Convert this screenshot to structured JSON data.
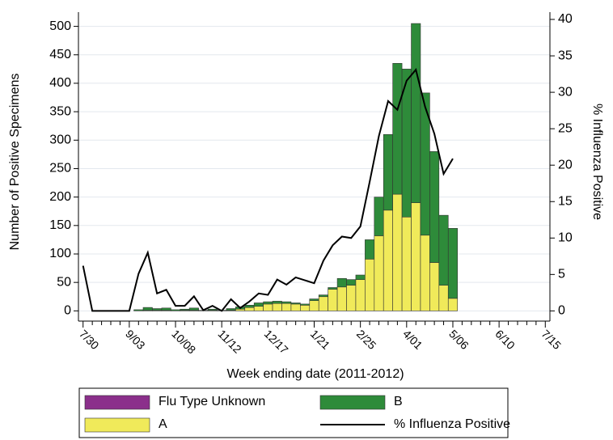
{
  "chart_data": {
    "type": "bar",
    "x_label": "Week ending date (2011-2012)",
    "y_label": "Number of Positive Specimens",
    "y2_label": "% Influenza Positive",
    "categories": [
      "7/30",
      null,
      null,
      null,
      null,
      "9/03",
      null,
      null,
      null,
      null,
      "10/08",
      null,
      null,
      null,
      null,
      "11/12",
      null,
      null,
      null,
      null,
      "12/17",
      null,
      null,
      null,
      null,
      "1/21",
      null,
      null,
      null,
      null,
      "2/25",
      null,
      null,
      null,
      null,
      "4/01",
      null,
      null,
      null,
      null,
      "5/06",
      null,
      null,
      null,
      null,
      "6/10",
      null,
      null,
      null,
      null,
      "7/15"
    ],
    "ylim": [
      -18,
      525
    ],
    "yticks": [
      0,
      50,
      100,
      150,
      200,
      250,
      300,
      350,
      400,
      450,
      500
    ],
    "y2lim": [
      -1.4,
      41
    ],
    "y2ticks": [
      0,
      5,
      10,
      15,
      20,
      25,
      30,
      35,
      40
    ],
    "grid": true,
    "series": [
      {
        "name": "Flu Type Unknown",
        "type": "bar",
        "color": "#8b2f8b",
        "values": [
          null,
          null,
          null,
          null,
          null,
          null,
          0,
          0,
          0,
          0,
          0,
          0,
          0,
          0,
          0,
          0,
          0,
          0,
          0,
          0,
          0,
          0,
          0,
          0,
          0,
          0,
          0,
          0,
          0,
          0,
          0,
          0,
          0,
          0,
          0,
          0,
          0,
          0,
          0,
          0,
          0,
          null,
          null,
          null,
          null,
          null,
          null,
          null,
          null,
          null,
          null
        ]
      },
      {
        "name": "B",
        "type": "bar",
        "color": "#2e8b3a",
        "values": [
          null,
          null,
          null,
          null,
          null,
          null,
          2,
          5,
          3,
          4,
          2,
          2,
          4,
          1,
          2,
          1,
          3,
          4,
          4,
          6,
          4,
          4,
          3,
          2,
          2,
          3,
          3,
          3,
          15,
          10,
          8,
          34,
          68,
          133,
          230,
          260,
          315,
          250,
          195,
          123,
          123,
          null,
          null,
          null,
          null,
          null,
          null,
          null,
          null,
          null,
          null
        ]
      },
      {
        "name": "A",
        "type": "bar",
        "color": "#f0ea5a",
        "values": [
          null,
          null,
          null,
          null,
          null,
          null,
          0,
          1,
          1,
          1,
          0,
          1,
          1,
          0,
          1,
          0,
          1,
          3,
          6,
          8,
          12,
          13,
          13,
          12,
          10,
          18,
          25,
          38,
          42,
          45,
          55,
          91,
          132,
          177,
          205,
          165,
          190,
          133,
          85,
          45,
          22,
          null,
          null,
          null,
          null,
          null,
          null,
          null,
          null,
          null,
          null
        ]
      },
      {
        "name": "% Influenza Positive",
        "type": "line",
        "axis": "y2",
        "color": "#000000",
        "values": [
          6.2,
          0,
          0,
          0,
          0,
          0,
          5.1,
          8.0,
          2.4,
          2.9,
          0.7,
          0.7,
          2.0,
          0.1,
          0.7,
          0,
          1.6,
          0.4,
          1.3,
          2.4,
          2.2,
          4.3,
          3.6,
          4.6,
          4.2,
          3.8,
          6.9,
          9.0,
          10.2,
          10.0,
          11.6,
          17.7,
          24.0,
          28.8,
          27.6,
          31.6,
          33.1,
          28.0,
          24.3,
          18.8,
          20.9,
          null,
          null,
          null,
          null,
          null,
          null,
          null,
          null,
          null,
          null
        ]
      }
    ]
  }
}
